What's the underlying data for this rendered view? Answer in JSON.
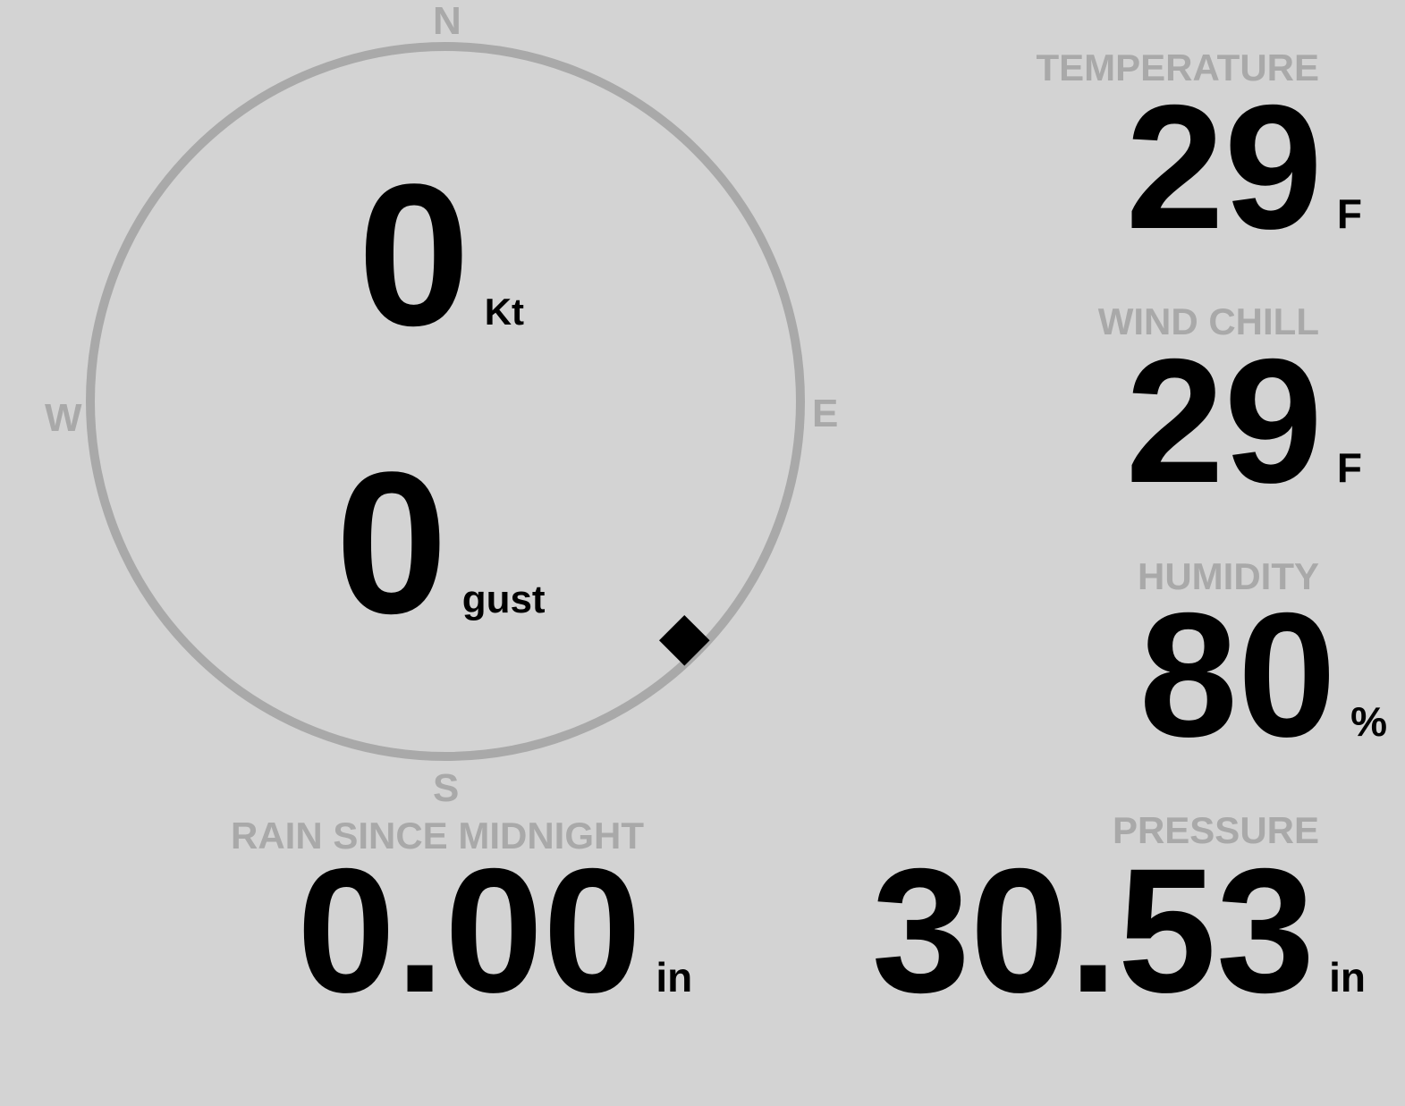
{
  "colors": {
    "background": "#d3d3d3",
    "muted": "#a9a9a9",
    "text": "#000000"
  },
  "compass": {
    "north": "N",
    "east": "E",
    "south": "S",
    "west": "W",
    "wind_direction_deg": 135,
    "wind_speed": "0",
    "wind_speed_unit": "Kt",
    "gust": "0",
    "gust_unit": "gust"
  },
  "temperature": {
    "label": "TEMPERATURE",
    "value": "29",
    "unit": "F"
  },
  "wind_chill": {
    "label": "WIND CHILL",
    "value": "29",
    "unit": "F"
  },
  "humidity": {
    "label": "HUMIDITY",
    "value": "80",
    "unit": "%"
  },
  "pressure": {
    "label": "PRESSURE",
    "value": "30.53",
    "unit": "in"
  },
  "rain": {
    "label": "RAIN SINCE MIDNIGHT",
    "value": "0.00",
    "unit": "in"
  }
}
